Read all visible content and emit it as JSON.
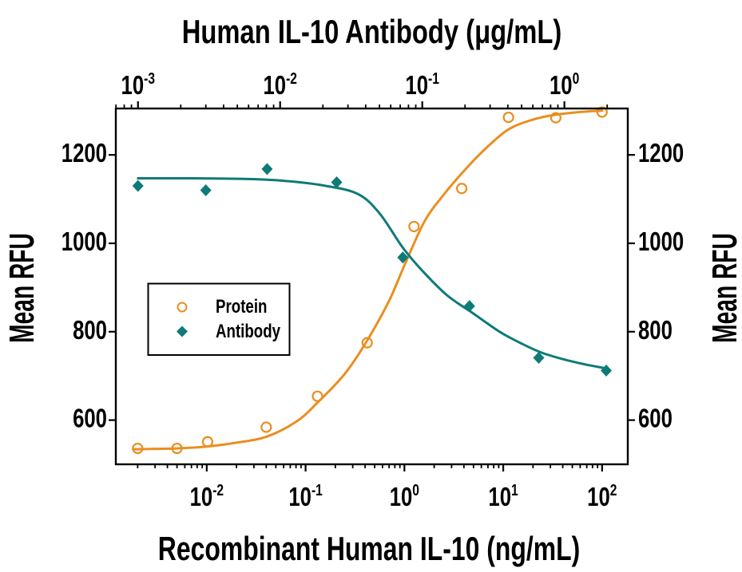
{
  "colors": {
    "protein": "#EA8E20",
    "antibody": "#0E7B78",
    "text": "#000000",
    "background": "#FFFFFF",
    "axis": "#000000"
  },
  "chart_data": {
    "type": "scatter",
    "title": "Human IL-10 Antibody (μg/mL)",
    "xlabel": "Recombinant Human IL-10 (ng/mL)",
    "ylabel_left": "Mean RFU",
    "ylabel_right": "Mean RFU",
    "axes": {
      "top": {
        "label": "Human IL-10 Antibody (μg/mL)",
        "units": "μg/mL",
        "scale": "log10",
        "range_log10": [
          -3.156,
          0.446
        ],
        "tick_exponents": [
          -3,
          -2,
          -1,
          0
        ]
      },
      "bottom": {
        "label": "Recombinant Human IL-10 (ng/mL)",
        "units": "ng/mL",
        "scale": "log10",
        "range_log10": [
          -2.92,
          2.26
        ],
        "tick_exponents": [
          -2,
          -1,
          0,
          1,
          2
        ]
      },
      "left": {
        "label": "Mean RFU",
        "scale": "linear",
        "range": [
          500,
          1305
        ],
        "ticks": [
          600,
          800,
          1000,
          1200
        ]
      },
      "right": {
        "label": "Mean RFU",
        "scale": "linear",
        "range": [
          500,
          1305
        ],
        "ticks": [
          600,
          800,
          1000,
          1200
        ]
      }
    },
    "series": [
      {
        "name": "Protein",
        "axis": "bottom",
        "marker": "open-circle",
        "color": "#EA8E20",
        "x": [
          0.002,
          0.005,
          0.0102,
          0.04,
          0.132,
          0.42,
          1.25,
          3.8,
          11.3,
          34,
          100
        ],
        "y": [
          536,
          536,
          551,
          584,
          654,
          775,
          1038,
          1124,
          1285,
          1284,
          1297
        ],
        "curve": [
          [
            0.0018,
            534
          ],
          [
            0.003,
            535
          ],
          [
            0.005,
            536
          ],
          [
            0.01,
            540
          ],
          [
            0.02,
            549
          ],
          [
            0.04,
            562
          ],
          [
            0.08,
            596
          ],
          [
            0.13,
            638
          ],
          [
            0.25,
            705
          ],
          [
            0.42,
            780
          ],
          [
            0.7,
            870
          ],
          [
            1.0,
            950
          ],
          [
            1.6,
            1050
          ],
          [
            2.5,
            1110
          ],
          [
            3.8,
            1158
          ],
          [
            6,
            1205
          ],
          [
            11,
            1256
          ],
          [
            20,
            1280
          ],
          [
            34,
            1291
          ],
          [
            60,
            1297
          ],
          [
            100,
            1300
          ]
        ]
      },
      {
        "name": "Antibody",
        "axis": "top",
        "marker": "filled-diamond",
        "color": "#0E7B78",
        "x": [
          0.001,
          0.003,
          0.0081,
          0.025,
          0.073,
          0.215,
          0.66,
          1.97
        ],
        "y": [
          1130,
          1120,
          1168,
          1138,
          968,
          858,
          741,
          712
        ],
        "curve": [
          [
            0.001,
            1147
          ],
          [
            0.002,
            1147
          ],
          [
            0.005,
            1146
          ],
          [
            0.01,
            1142
          ],
          [
            0.02,
            1131
          ],
          [
            0.035,
            1112
          ],
          [
            0.05,
            1068
          ],
          [
            0.073,
            990
          ],
          [
            0.1,
            938
          ],
          [
            0.15,
            882
          ],
          [
            0.22,
            845
          ],
          [
            0.35,
            800
          ],
          [
            0.5,
            773
          ],
          [
            0.7,
            752
          ],
          [
            1.0,
            737
          ],
          [
            1.4,
            726
          ],
          [
            1.97,
            717
          ]
        ]
      }
    ],
    "legend": {
      "entries": [
        "Protein",
        "Antibody"
      ],
      "position": "lower-left"
    }
  }
}
